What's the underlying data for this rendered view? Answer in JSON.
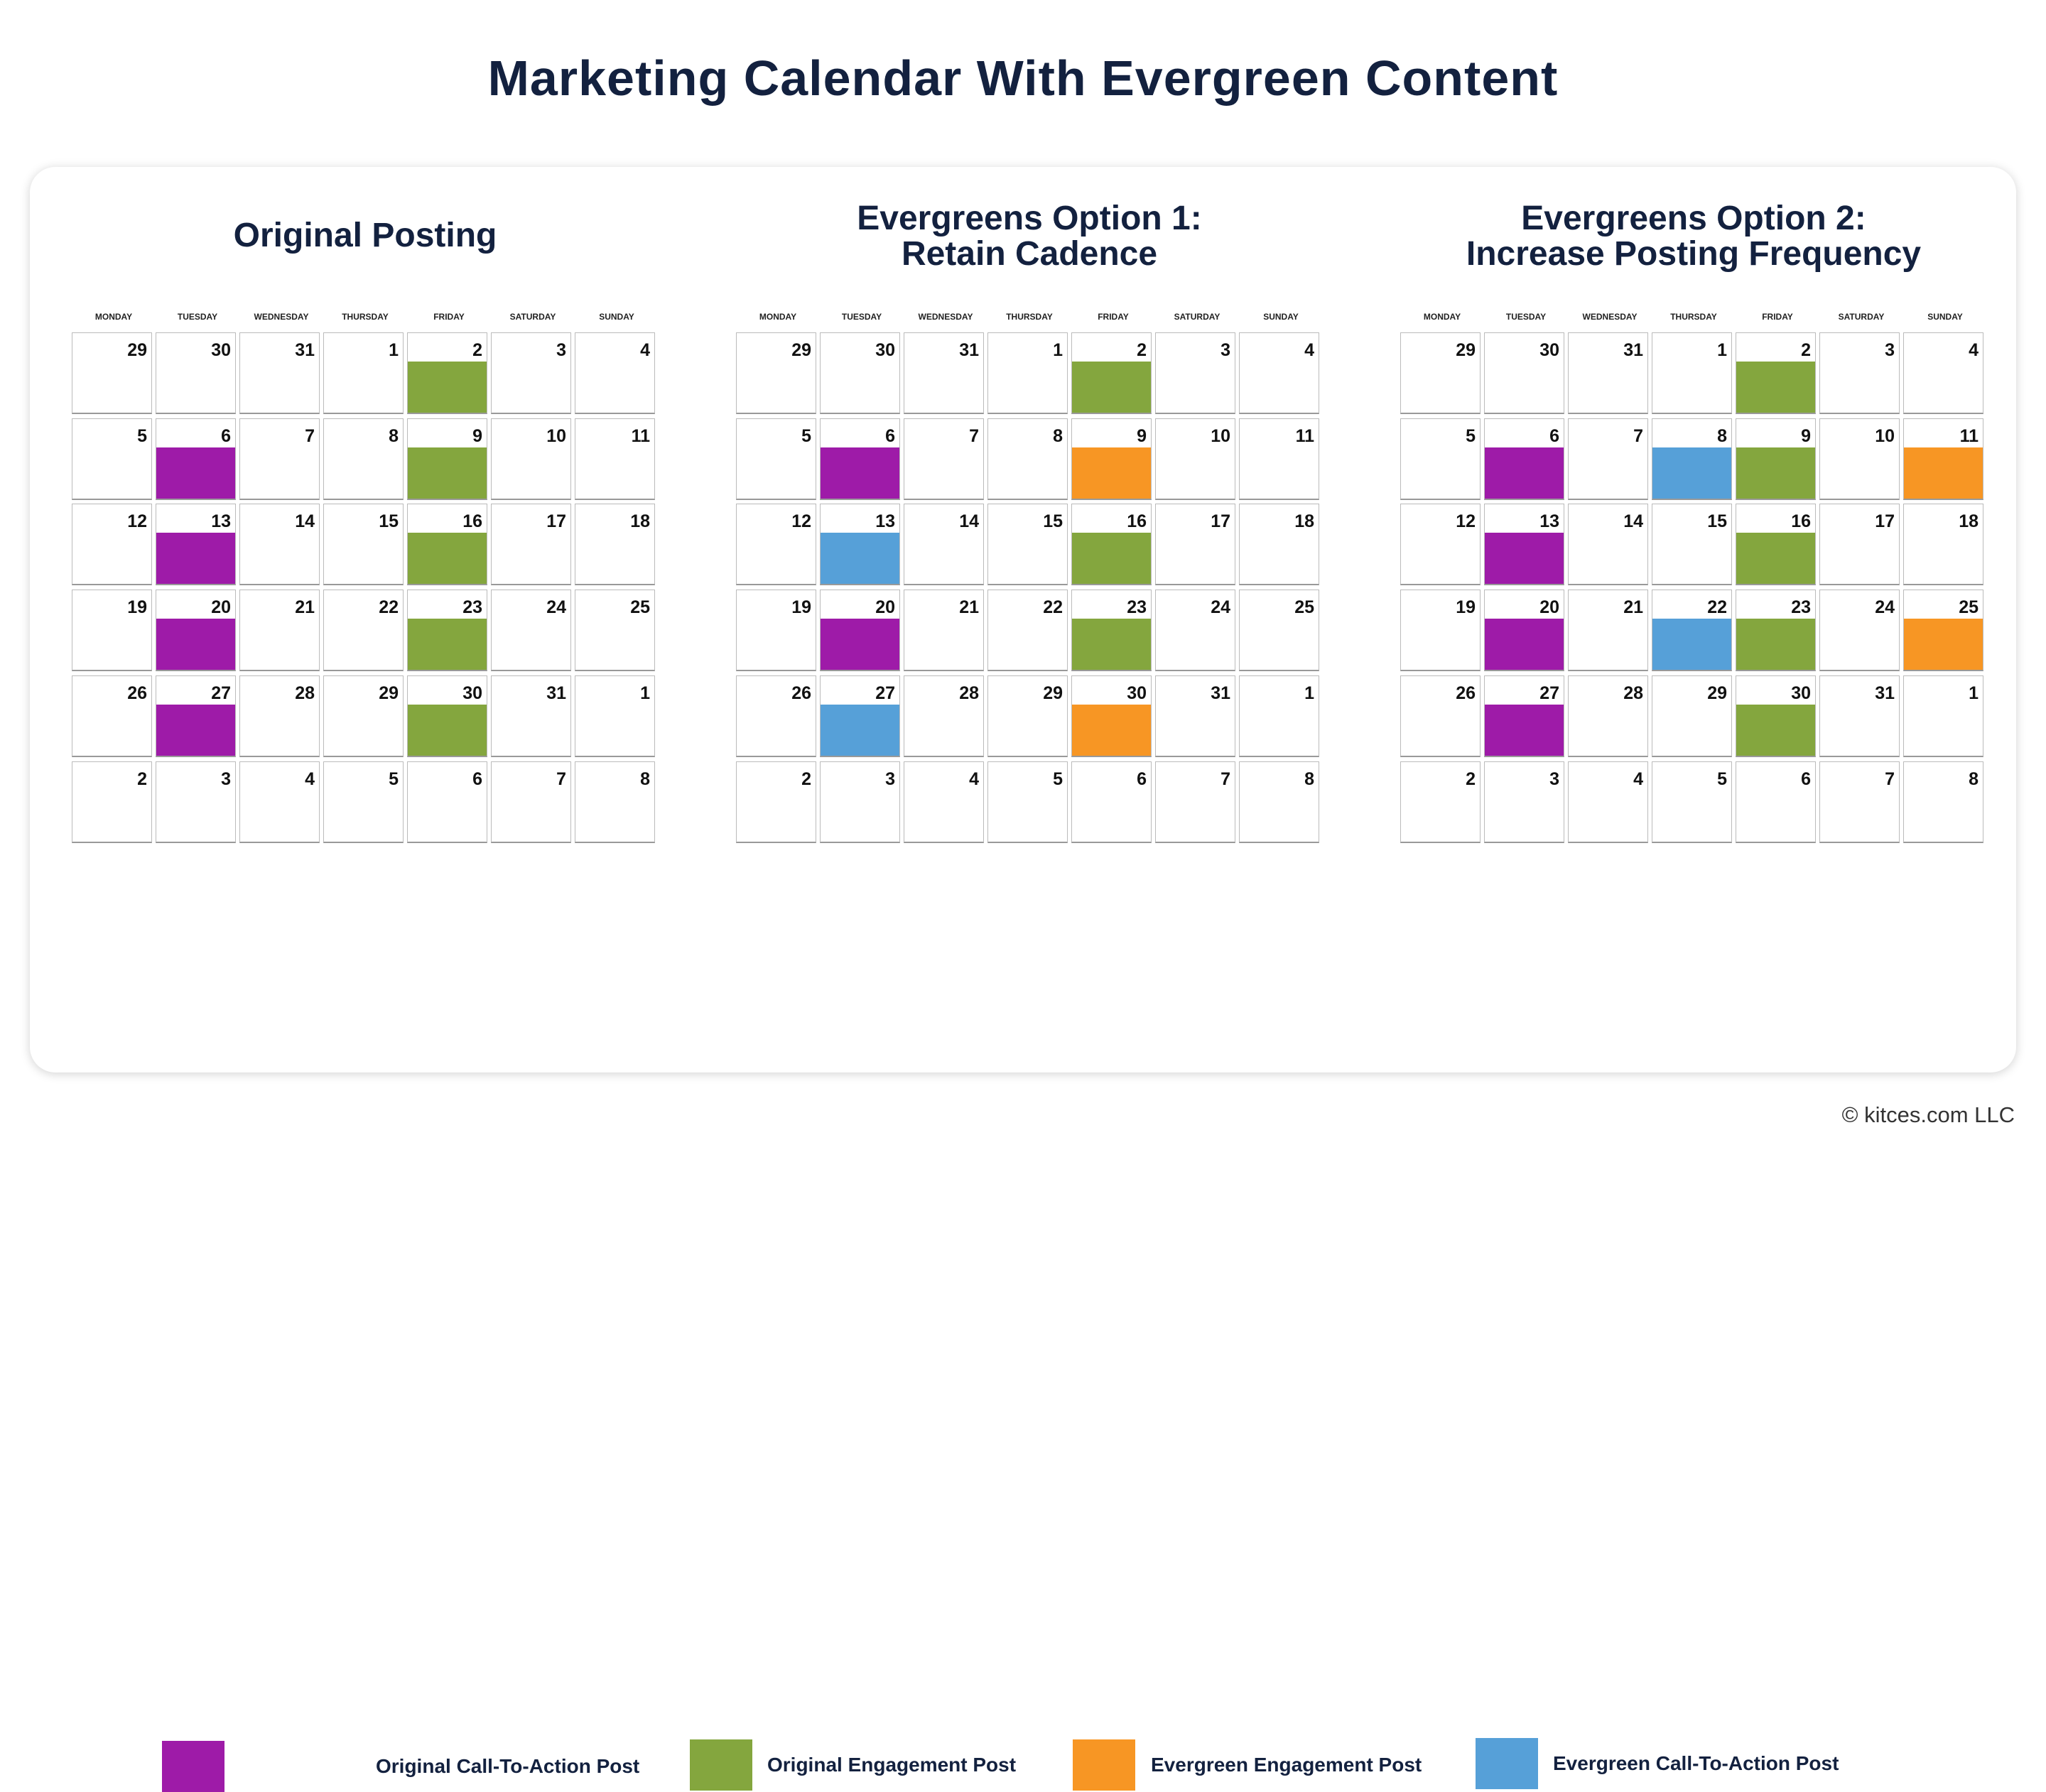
{
  "title": "Marketing Calendar With Evergreen Content",
  "days": [
    "MONDAY",
    "TUESDAY",
    "WEDNESDAY",
    "THURSDAY",
    "FRIDAY",
    "SATURDAY",
    "SUNDAY"
  ],
  "dates": [
    [
      "29",
      "30",
      "31",
      "1",
      "2",
      "3",
      "4"
    ],
    [
      "5",
      "6",
      "7",
      "8",
      "9",
      "10",
      "11"
    ],
    [
      "12",
      "13",
      "14",
      "15",
      "16",
      "17",
      "18"
    ],
    [
      "19",
      "20",
      "21",
      "22",
      "23",
      "24",
      "25"
    ],
    [
      "26",
      "27",
      "28",
      "29",
      "30",
      "31",
      "1"
    ],
    [
      "2",
      "3",
      "4",
      "5",
      "6",
      "7",
      "8"
    ]
  ],
  "colors": {
    "original_cta": "#9e1ba8",
    "original_engagement": "#84a63e",
    "evergreen_engagement": "#f79624",
    "evergreen_cta": "#56a0d8"
  },
  "calendars": [
    {
      "title_lines": [
        "Original Posting"
      ],
      "posts": [
        {
          "week": 0,
          "day": 4,
          "type": "original_engagement"
        },
        {
          "week": 1,
          "day": 1,
          "type": "original_cta"
        },
        {
          "week": 1,
          "day": 4,
          "type": "original_engagement"
        },
        {
          "week": 2,
          "day": 1,
          "type": "original_cta"
        },
        {
          "week": 2,
          "day": 4,
          "type": "original_engagement"
        },
        {
          "week": 3,
          "day": 1,
          "type": "original_cta"
        },
        {
          "week": 3,
          "day": 4,
          "type": "original_engagement"
        },
        {
          "week": 4,
          "day": 1,
          "type": "original_cta"
        },
        {
          "week": 4,
          "day": 4,
          "type": "original_engagement"
        }
      ]
    },
    {
      "title_lines": [
        "Evergreens Option 1:",
        "Retain Cadence"
      ],
      "posts": [
        {
          "week": 0,
          "day": 4,
          "type": "original_engagement"
        },
        {
          "week": 1,
          "day": 1,
          "type": "original_cta"
        },
        {
          "week": 1,
          "day": 4,
          "type": "evergreen_engagement"
        },
        {
          "week": 2,
          "day": 1,
          "type": "evergreen_cta"
        },
        {
          "week": 2,
          "day": 4,
          "type": "original_engagement"
        },
        {
          "week": 3,
          "day": 1,
          "type": "original_cta"
        },
        {
          "week": 3,
          "day": 4,
          "type": "original_engagement"
        },
        {
          "week": 4,
          "day": 1,
          "type": "evergreen_cta"
        },
        {
          "week": 4,
          "day": 4,
          "type": "evergreen_engagement"
        }
      ]
    },
    {
      "title_lines": [
        "Evergreens Option 2:",
        "Increase Posting Frequency"
      ],
      "posts": [
        {
          "week": 0,
          "day": 4,
          "type": "original_engagement"
        },
        {
          "week": 1,
          "day": 1,
          "type": "original_cta"
        },
        {
          "week": 1,
          "day": 3,
          "type": "evergreen_cta"
        },
        {
          "week": 1,
          "day": 4,
          "type": "original_engagement"
        },
        {
          "week": 1,
          "day": 6,
          "type": "evergreen_engagement"
        },
        {
          "week": 2,
          "day": 1,
          "type": "original_cta"
        },
        {
          "week": 2,
          "day": 4,
          "type": "original_engagement"
        },
        {
          "week": 3,
          "day": 1,
          "type": "original_cta"
        },
        {
          "week": 3,
          "day": 3,
          "type": "evergreen_cta"
        },
        {
          "week": 3,
          "day": 4,
          "type": "original_engagement"
        },
        {
          "week": 3,
          "day": 6,
          "type": "evergreen_engagement"
        },
        {
          "week": 4,
          "day": 1,
          "type": "original_cta"
        },
        {
          "week": 4,
          "day": 4,
          "type": "original_engagement"
        }
      ]
    }
  ],
  "legend": [
    {
      "type": "original_cta",
      "label": "Original Call-To-Action Post"
    },
    {
      "type": "original_engagement",
      "label": "Original Engagement Post"
    },
    {
      "type": "evergreen_engagement",
      "label": "Evergreen Engagement Post"
    },
    {
      "type": "evergreen_cta",
      "label": "Evergreen Call-To-Action Post"
    }
  ],
  "copyright": "© kitces.com LLC"
}
